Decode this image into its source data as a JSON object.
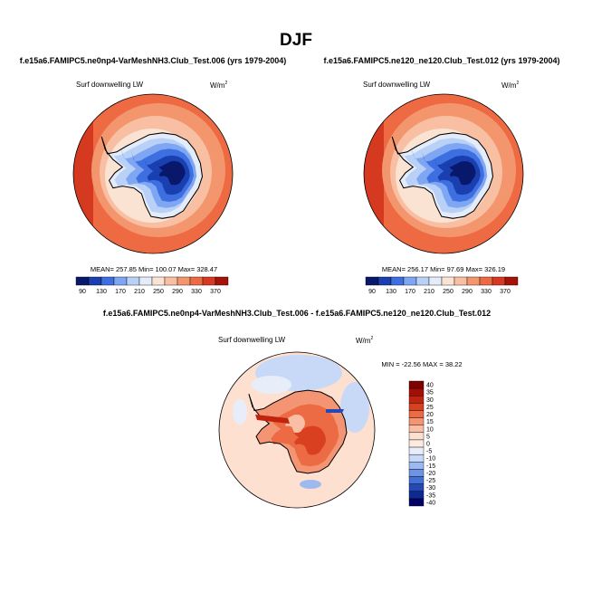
{
  "chart_data": {
    "type": "polar-contour-maps",
    "suptitle": "DJF",
    "colors": {
      "palette12": [
        "#08186b",
        "#1a3fb0",
        "#3e6fe0",
        "#7ea6f2",
        "#b9d1f7",
        "#e4ecf9",
        "#fbe3d3",
        "#f8bfa2",
        "#f4966d",
        "#ee6a43",
        "#d53a20",
        "#a41208"
      ],
      "diff_palette": [
        "#7f0000",
        "#a40f05",
        "#c0230e",
        "#d84020",
        "#ec6a44",
        "#f39472",
        "#f9bea3",
        "#fde0d0",
        "#fdebe0",
        "#e7eefa",
        "#c7d9f6",
        "#9db9ef",
        "#6e95e4",
        "#4470d5",
        "#2448b6",
        "#0c2a8f",
        "#000066"
      ]
    },
    "panels": [
      {
        "case": "f.e15a6.FAMIPC5.ne0np4-VarMeshNH3.Club_Test.006 (yrs 1979-2004)",
        "variable": "Surf downwelling LW",
        "units_base": "W/m",
        "units_exp": "2",
        "stats": "MEAN= 257.85  Min= 100.07  Max= 328.47",
        "mean": 257.85,
        "min": 100.07,
        "max": 328.47,
        "levels": [
          90,
          110,
          130,
          150,
          170,
          190,
          210,
          230,
          250,
          270,
          290,
          310,
          330,
          350,
          370
        ],
        "colorbar_labels": [
          "90",
          "130",
          "170",
          "210",
          "250",
          "290",
          "330",
          "370"
        ]
      },
      {
        "case": "f.e15a6.FAMIPC5.ne120_ne120.Club_Test.012 (yrs 1979-2004)",
        "variable": "Surf downwelling LW",
        "units_base": "W/m",
        "units_exp": "2",
        "stats": "MEAN= 256.17  Min= 97.69  Max= 326.19",
        "mean": 256.17,
        "min": 97.69,
        "max": 326.19,
        "levels": [
          90,
          110,
          130,
          150,
          170,
          190,
          210,
          230,
          250,
          270,
          290,
          310,
          330,
          350,
          370
        ],
        "colorbar_labels": [
          "90",
          "130",
          "170",
          "210",
          "250",
          "290",
          "330",
          "370"
        ]
      },
      {
        "case": "f.e15a6.FAMIPC5.ne0np4-VarMeshNH3.Club_Test.006 - f.e15a6.FAMIPC5.ne120_ne120.Club_Test.012",
        "variable": "Surf downwelling LW",
        "units_base": "W/m",
        "units_exp": "2",
        "stats": "MIN = -22.56  MAX =  38.22",
        "min": -22.56,
        "max": 38.22,
        "levels": [
          40,
          35,
          30,
          25,
          20,
          15,
          10,
          5,
          0,
          -5,
          -10,
          -15,
          -20,
          -25,
          -30,
          -35,
          -40
        ],
        "colorbar_labels": [
          "40",
          "35",
          "30",
          "25",
          "20",
          "15",
          "10",
          "5",
          "0",
          "-5",
          "-10",
          "-15",
          "-20",
          "-25",
          "-30",
          "-35",
          "-40"
        ]
      }
    ]
  }
}
